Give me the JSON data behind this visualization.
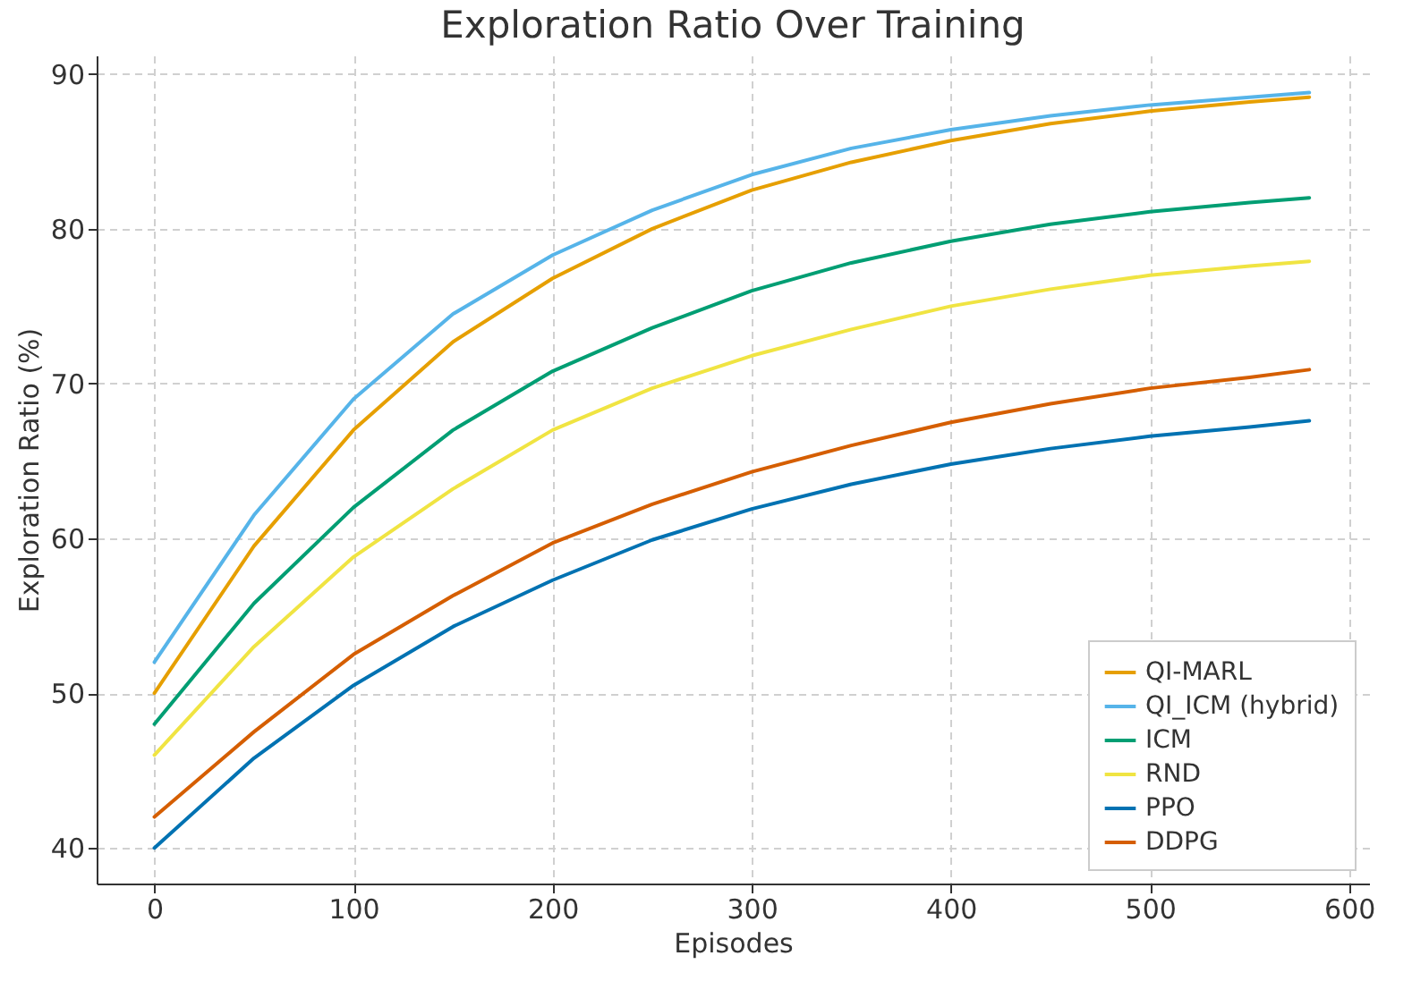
{
  "chart_data": {
    "type": "line",
    "title": "Exploration Ratio Over Training",
    "xlabel": "Episodes",
    "ylabel": "Exploration Ratio (%)",
    "x": [
      0,
      50,
      100,
      150,
      200,
      250,
      300,
      350,
      400,
      450,
      500,
      550,
      580
    ],
    "series": [
      {
        "name": "QI-MARL",
        "color": "#e69f00",
        "values": [
          50,
          59.5,
          67,
          72.7,
          76.8,
          80,
          82.5,
          84.3,
          85.7,
          86.8,
          87.6,
          88.2,
          88.5
        ]
      },
      {
        "name": "QI_ICM (hybrid)",
        "color": "#56b4e9",
        "values": [
          52,
          61.5,
          69,
          74.5,
          78.3,
          81.2,
          83.5,
          85.2,
          86.4,
          87.3,
          88,
          88.5,
          88.8
        ]
      },
      {
        "name": "ICM",
        "color": "#009e73",
        "values": [
          48,
          55.8,
          62,
          67,
          70.8,
          73.6,
          76,
          77.8,
          79.2,
          80.3,
          81.1,
          81.7,
          82
        ]
      },
      {
        "name": "RND",
        "color": "#f0e442",
        "values": [
          46,
          53,
          58.8,
          63.2,
          67,
          69.7,
          71.8,
          73.5,
          75,
          76.1,
          77,
          77.6,
          77.9
        ]
      },
      {
        "name": "PPO",
        "color": "#0072b2",
        "values": [
          40,
          45.8,
          50.5,
          54.3,
          57.3,
          59.9,
          61.9,
          63.5,
          64.8,
          65.8,
          66.6,
          67.2,
          67.6
        ]
      },
      {
        "name": "DDPG",
        "color": "#d55e00",
        "values": [
          42,
          47.5,
          52.5,
          56.3,
          59.7,
          62.2,
          64.3,
          66,
          67.5,
          68.7,
          69.7,
          70.4,
          70.9
        ]
      }
    ],
    "xlim": [
      -29,
      610
    ],
    "ylim": [
      37.7,
      91.2
    ],
    "xticks": [
      0,
      100,
      200,
      300,
      400,
      500,
      600
    ],
    "yticks": [
      40,
      50,
      60,
      70,
      80,
      90
    ],
    "grid": true,
    "legend": "bottom right",
    "marker": "none",
    "line_style": "solid"
  }
}
